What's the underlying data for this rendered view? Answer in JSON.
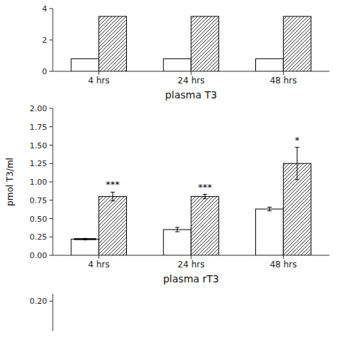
{
  "chart_data": [
    {
      "type": "bar",
      "title": "plasma T3",
      "categories": [
        "4 hrs",
        "24 hrs",
        "48 hrs"
      ],
      "series": [
        {
          "color": "#ffffff",
          "values": [
            0.8,
            0.8,
            0.8
          ]
        },
        {
          "color": "#ffffff",
          "values": [
            3.5,
            3.5,
            3.5
          ]
        }
      ],
      "ylim": [
        0,
        4
      ],
      "yticks": [
        0,
        2,
        4
      ]
    },
    {
      "type": "bar",
      "title": "plasma rT3",
      "y_label": "pmol T3/ml",
      "categories": [
        "4 hrs",
        "24 hrs",
        "48 hrs"
      ],
      "series": [
        {
          "color": "#ffffff",
          "values": [
            0.22,
            0.35,
            0.63
          ],
          "errors": [
            0.01,
            0.03,
            0.025
          ]
        },
        {
          "color": "#ffffff",
          "values": [
            0.8,
            0.8,
            1.25
          ],
          "errors": [
            0.06,
            0.03,
            0.22
          ]
        }
      ],
      "annotations": [
        "***",
        "***",
        "*"
      ],
      "ylim": [
        0.0,
        2.0
      ],
      "yticks": [
        {
          "value": 0.0,
          "label": "0.00"
        },
        {
          "value": 0.25,
          "label": "0.25"
        },
        {
          "value": 0.5,
          "label": "0.50"
        },
        {
          "value": 0.75,
          "label": "0.75"
        },
        {
          "value": 1.0,
          "label": "1.00"
        },
        {
          "value": 1.25,
          "label": "1.25"
        },
        {
          "value": 1.5,
          "label": "1.50"
        },
        {
          "value": 1.75,
          "label": "1.75"
        },
        {
          "value": 2.0,
          "label": "2.00"
        }
      ]
    },
    {
      "type": "bar",
      "ylim": [
        0,
        0.25
      ],
      "yticks": [
        {
          "value": 0.2,
          "label": "0.20"
        }
      ],
      "tick_labels": "y"
    }
  ]
}
